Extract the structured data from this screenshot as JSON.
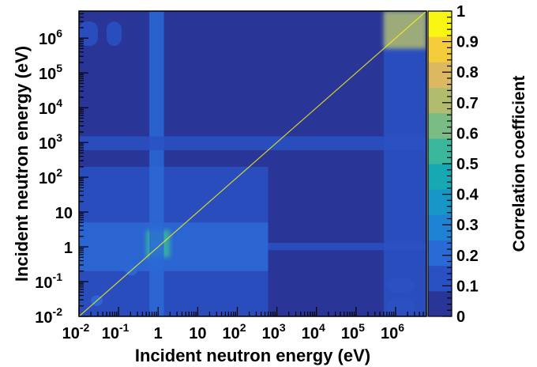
{
  "chart_data": {
    "type": "heatmap",
    "title": "",
    "xlabel": "Incident neutron energy (eV)",
    "ylabel": "Incident neutron energy (eV)",
    "x_scale": "log",
    "y_scale": "log",
    "xlim": [
      0.01,
      6000000
    ],
    "ylim": [
      0.01,
      6000000
    ],
    "x_ticks": [
      {
        "value": 0.01,
        "base": "10",
        "exp": "-2"
      },
      {
        "value": 0.1,
        "base": "10",
        "exp": "-1"
      },
      {
        "value": 1,
        "base": "1",
        "exp": ""
      },
      {
        "value": 10,
        "base": "10",
        "exp": ""
      },
      {
        "value": 100,
        "base": "10",
        "exp": "2"
      },
      {
        "value": 1000,
        "base": "10",
        "exp": "3"
      },
      {
        "value": 10000,
        "base": "10",
        "exp": "4"
      },
      {
        "value": 100000,
        "base": "10",
        "exp": "5"
      },
      {
        "value": 1000000,
        "base": "10",
        "exp": "6"
      }
    ],
    "y_ticks": [
      {
        "value": 0.01,
        "base": "10",
        "exp": "-2"
      },
      {
        "value": 0.1,
        "base": "10",
        "exp": "-1"
      },
      {
        "value": 1,
        "base": "1",
        "exp": ""
      },
      {
        "value": 10,
        "base": "10",
        "exp": ""
      },
      {
        "value": 100,
        "base": "10",
        "exp": "2"
      },
      {
        "value": 1000,
        "base": "10",
        "exp": "3"
      },
      {
        "value": 10000,
        "base": "10",
        "exp": "4"
      },
      {
        "value": 100000,
        "base": "10",
        "exp": "5"
      },
      {
        "value": 1000000,
        "base": "10",
        "exp": "6"
      }
    ],
    "colorbar": {
      "label": "Correlation coefficient",
      "range": [
        0,
        1
      ],
      "ticks": [
        "0",
        "0.1",
        "0.2",
        "0.3",
        "0.4",
        "0.5",
        "0.6",
        "0.7",
        "0.8",
        "0.9",
        "1"
      ],
      "colors": [
        "#2a3697",
        "#2a51c3",
        "#2a6ad6",
        "#1f83d5",
        "#1896c8",
        "#16a9b4",
        "#3bb89b",
        "#7abd84",
        "#b2bc6f",
        "#dcb861",
        "#f5cc3a",
        "#f9f614"
      ]
    },
    "background_value": 0.04,
    "regions": [
      {
        "x": [
          0.01,
          600
        ],
        "y": [
          0.01,
          200
        ],
        "value": 0.12,
        "label": "low-energy block"
      },
      {
        "x": [
          0.01,
          600
        ],
        "y": [
          0.2,
          5
        ],
        "value": 0.2,
        "label": "low-energy strong band"
      },
      {
        "x": [
          0.5,
          2
        ],
        "y": [
          0.5,
          3
        ],
        "value": 0.55,
        "label": "1 eV resonance"
      },
      {
        "x": [
          0.6,
          1.4
        ],
        "y": [
          0.01,
          6000000
        ],
        "value": 0.2,
        "label": "1 eV vertical band"
      },
      {
        "x": [
          0.02,
          0.04
        ],
        "y": [
          0.02,
          0.04
        ],
        "value": 0.25,
        "label": "thermal spot"
      },
      {
        "x": [
          0.15,
          0.3
        ],
        "y": [
          0.15,
          0.3
        ],
        "value": 0.25,
        "label": "thermal spot"
      },
      {
        "x": [
          600,
          6000000
        ],
        "y": [
          0.8,
          1.3
        ],
        "value": 0.18,
        "label": "1 eV horizontal line"
      },
      {
        "x": [
          0.01,
          6000000
        ],
        "y": [
          600,
          1500
        ],
        "value": 0.14,
        "label": "keV horizontal band"
      },
      {
        "x": [
          500000,
          6000000
        ],
        "y": [
          0.01,
          6000000
        ],
        "value": 0.14,
        "label": "MeV vertical band"
      },
      {
        "x": [
          500000,
          6000000
        ],
        "y": [
          500000,
          6000000
        ],
        "value": 0.75,
        "label": "MeV block"
      },
      {
        "x": [
          0.01,
          0.03
        ],
        "y": [
          600000,
          3000000
        ],
        "value": 0.12,
        "label": "thermal-MeV spot"
      },
      {
        "x": [
          0.05,
          0.12
        ],
        "y": [
          600000,
          3000000
        ],
        "value": 0.12,
        "label": "thermal-MeV spot"
      },
      {
        "x": [
          600000,
          3000000
        ],
        "y": [
          0.05,
          0.12
        ],
        "value": 0.12,
        "label": "MeV-thermal spot"
      },
      {
        "x": [
          600000,
          3000000
        ],
        "y": [
          0.01,
          0.03
        ],
        "value": 0.12,
        "label": "MeV-thermal spot"
      }
    ],
    "diagonal_value": 1.0,
    "grid": false,
    "legend": "colorbar-right"
  }
}
